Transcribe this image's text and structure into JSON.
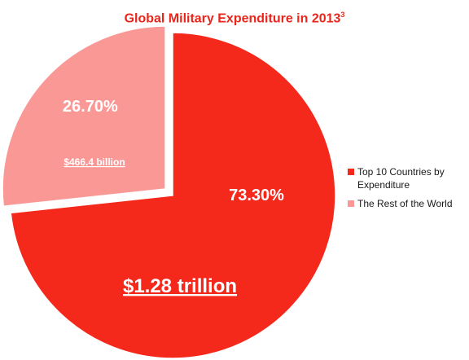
{
  "chart_data": {
    "type": "pie",
    "title": "Global Military Expenditure in 2013",
    "title_footnote": "3",
    "slices": [
      {
        "name": "Top 10 Countries by Expenditure",
        "value": 73.3,
        "pct_label": "73.30%",
        "amount_label": "$1.28 trillion",
        "color": "#f4291c",
        "exploded": false
      },
      {
        "name": "The Rest of the World",
        "value": 26.7,
        "pct_label": "26.70%",
        "amount_label": "$466.4 billion",
        "color": "#fa9896",
        "exploded": true
      }
    ],
    "legend_position": "right"
  }
}
